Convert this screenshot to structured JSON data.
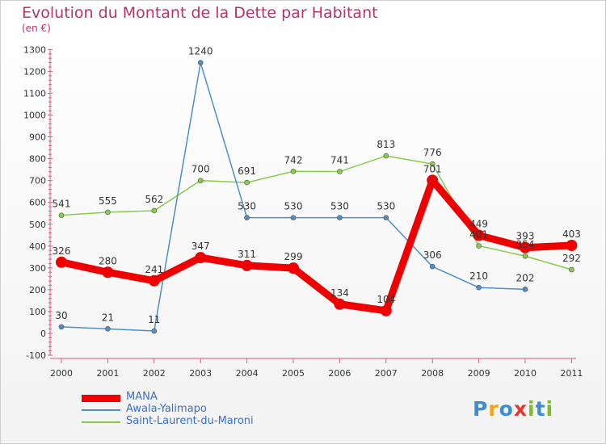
{
  "title": "Evolution du Montant de la Dette par Habitant",
  "unit_label": "(en €)",
  "logo": {
    "letters": [
      "P",
      "r",
      "o",
      "x",
      "i",
      "t",
      "i"
    ],
    "colors": [
      "#3a8ed6",
      "#f2a21b",
      "#3a8ed6",
      "#e8342d",
      "#7cbc2a",
      "#3a8ed6",
      "#7cbc2a"
    ]
  },
  "chart_data": {
    "type": "line",
    "title": "Evolution du Montant de la Dette par Habitant",
    "subtitle": "(en €)",
    "x": [
      "2000",
      "2001",
      "2002",
      "2003",
      "2004",
      "2005",
      "2006",
      "2007",
      "2008",
      "2009",
      "2010",
      "2011"
    ],
    "ylim": [
      -100,
      1300
    ],
    "yticks": [
      -100,
      0,
      100,
      200,
      300,
      400,
      500,
      600,
      700,
      800,
      900,
      1000,
      1100,
      1200,
      1300
    ],
    "grid": false,
    "legend_position": "bottom-left",
    "series": [
      {
        "name": "MANA",
        "color": "#ee0000",
        "values": [
          326,
          280,
          241,
          347,
          311,
          299,
          134,
          104,
          701,
          449,
          393,
          403
        ]
      },
      {
        "name": "Awala-Yalimapo",
        "color": "#4e8fc8",
        "values": [
          30,
          21,
          11,
          1240,
          530,
          530,
          530,
          530,
          306,
          210,
          202,
          null
        ]
      },
      {
        "name": "Saint-Laurent-du-Maroni",
        "color": "#88cc4c",
        "values": [
          541,
          555,
          562,
          700,
          691,
          742,
          741,
          813,
          776,
          401,
          354,
          292
        ]
      }
    ]
  }
}
